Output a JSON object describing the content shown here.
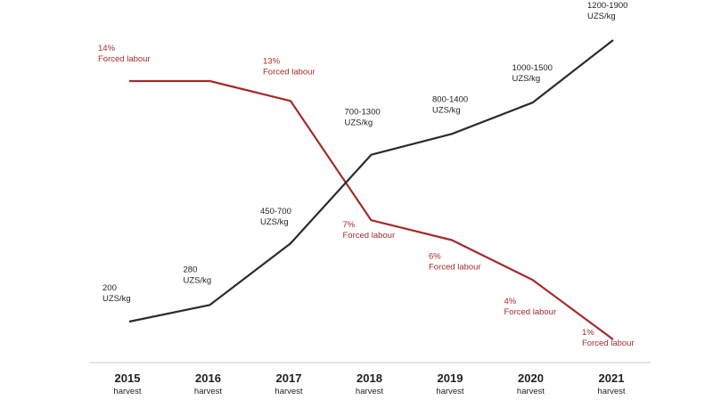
{
  "chart_data": {
    "type": "line",
    "categories": [
      "2015",
      "2016",
      "2017",
      "2018",
      "2019",
      "2020",
      "2021"
    ],
    "category_sublabel": "harvest",
    "grid": false,
    "colors": {
      "price": "#2b2b2b",
      "forced": "#a52a2a",
      "axis": "#cccccc",
      "text": "#222222"
    },
    "series": [
      {
        "key": "price",
        "values": [
          200,
          280,
          575,
          1000,
          1100,
          1250,
          1550
        ],
        "labels": [
          [
            "200",
            "UZS/kg"
          ],
          [
            "280",
            "UZS/kg"
          ],
          [
            "450-700",
            "UZS/kg"
          ],
          [
            "700-1300",
            "UZS/kg"
          ],
          [
            "800-1400",
            "UZS/kg"
          ],
          [
            "1000-1500",
            "UZS/kg"
          ],
          [
            "1200-1900",
            "UZS/kg"
          ]
        ]
      },
      {
        "key": "forced",
        "values": [
          14,
          14,
          13,
          7,
          6,
          4,
          1
        ],
        "labels": [
          [
            "14%",
            "Forced labour"
          ],
          [
            "",
            ""
          ],
          [
            "13%",
            "Forced labour"
          ],
          [
            "7%",
            "Forced labour"
          ],
          [
            "6%",
            "Forced labour"
          ],
          [
            "4%",
            "Forced labour"
          ],
          [
            "1%",
            "Forced labour"
          ]
        ]
      }
    ]
  }
}
